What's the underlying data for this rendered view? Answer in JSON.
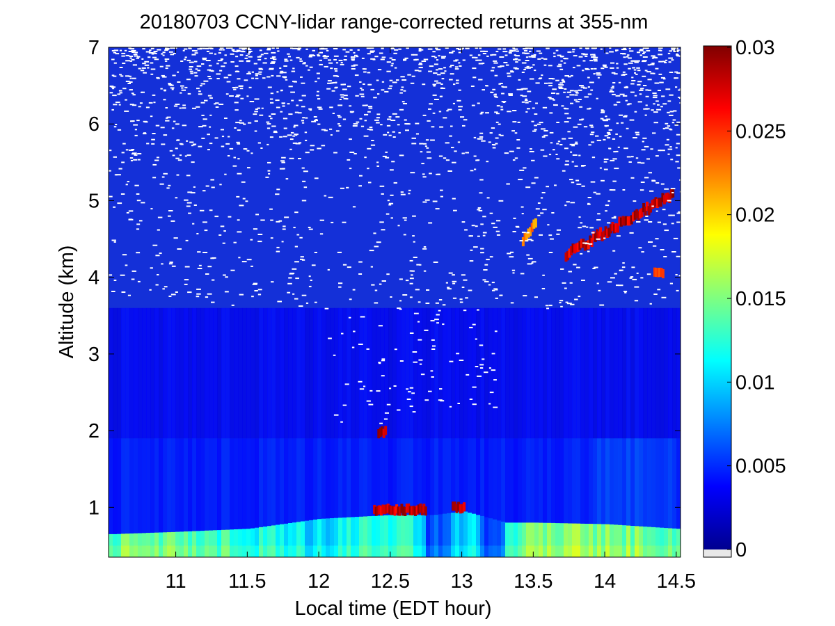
{
  "chart_data": {
    "type": "heatmap",
    "title": "20180703 CCNY-lidar range-corrected returns at 355-nm",
    "xlabel": "Local time (EDT hour)",
    "ylabel": "Altitude (km)",
    "xlim": [
      10.53,
      14.53
    ],
    "ylim": [
      0.35,
      7
    ],
    "xticks": [
      11,
      11.5,
      12,
      12.5,
      13,
      13.5,
      14,
      14.5
    ],
    "xtick_labels": [
      "11",
      "11.5",
      "12",
      "12.5",
      "13",
      "13.5",
      "14",
      "14.5"
    ],
    "yticks": [
      1,
      2,
      3,
      4,
      5,
      6,
      7
    ],
    "ytick_labels": [
      "1",
      "2",
      "3",
      "4",
      "5",
      "6",
      "7"
    ],
    "colorbar": {
      "colormap": "jet",
      "range": [
        0,
        0.03
      ],
      "ticks": [
        0,
        0.005,
        0.01,
        0.015,
        0.02,
        0.025,
        0.03
      ],
      "tick_labels": [
        "0",
        "0.005",
        "0.01",
        "0.015",
        "0.02",
        "0.025",
        "0.03"
      ],
      "below_range_color": "#e8e8e8"
    },
    "features": {
      "boundary_layer": [
        {
          "t": 10.55,
          "top_km": 0.65,
          "value": 0.014
        },
        {
          "t": 11.0,
          "top_km": 0.68,
          "value": 0.014
        },
        {
          "t": 11.5,
          "top_km": 0.72,
          "value": 0.012
        },
        {
          "t": 12.0,
          "top_km": 0.85,
          "value": 0.01
        },
        {
          "t": 12.5,
          "top_km": 0.9,
          "value": 0.013
        },
        {
          "t": 12.8,
          "top_km": 0.9,
          "value": 0.009
        },
        {
          "t": 13.0,
          "top_km": 0.95,
          "value": 0.01
        },
        {
          "t": 13.3,
          "top_km": 0.8,
          "value": 0.013
        },
        {
          "t": 13.5,
          "top_km": 0.8,
          "value": 0.015
        },
        {
          "t": 14.0,
          "top_km": 0.78,
          "value": 0.015
        },
        {
          "t": 14.5,
          "top_km": 0.72,
          "value": 0.014
        }
      ],
      "clouds": [
        {
          "t0": 12.38,
          "t1": 12.75,
          "alt_km": 0.97,
          "value": 0.03
        },
        {
          "t0": 12.93,
          "t1": 13.02,
          "alt_km": 1.0,
          "value": 0.03
        },
        {
          "t0": 12.41,
          "t1": 12.47,
          "alt_km": 1.98,
          "value": 0.03
        },
        {
          "t0": 13.72,
          "t1": 14.48,
          "alt_km_start": 4.3,
          "alt_km_end": 5.1,
          "value": 0.03
        },
        {
          "t0": 13.42,
          "t1": 13.52,
          "alt_km_start": 4.5,
          "alt_km_end": 4.75,
          "value": 0.024
        },
        {
          "t0": 14.34,
          "t1": 14.41,
          "alt_km": 4.05,
          "value": 0.025
        }
      ],
      "noise_onset_km": 3.6
    }
  }
}
